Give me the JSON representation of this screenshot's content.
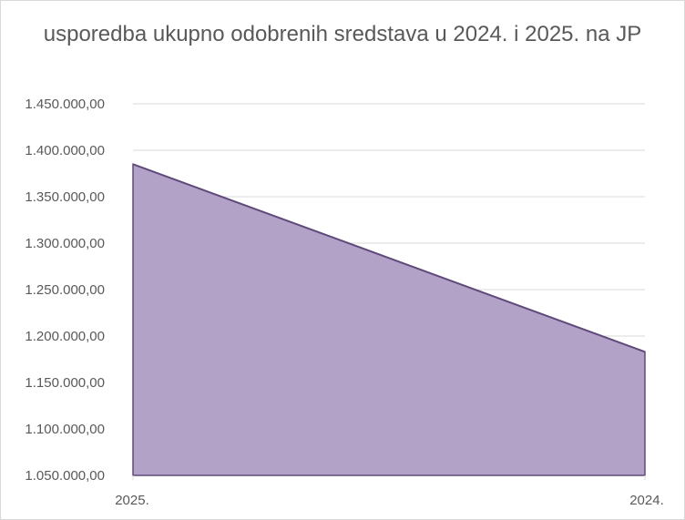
{
  "chart_data": {
    "type": "area",
    "title": "usporedba ukupno odobrenih sredstava u 2024. i 2025. na JP",
    "categories": [
      "2025.",
      "2024."
    ],
    "series": [
      {
        "values": [
          1385000,
          1183000
        ]
      }
    ],
    "xlabel": "",
    "ylabel": "",
    "ylim": [
      1050000,
      1450000
    ],
    "yticks": [
      {
        "value": 1050000,
        "label": "1.050.000,00"
      },
      {
        "value": 1100000,
        "label": "1.100.000,00"
      },
      {
        "value": 1150000,
        "label": "1.150.000,00"
      },
      {
        "value": 1200000,
        "label": "1.200.000,00"
      },
      {
        "value": 1250000,
        "label": "1.250.000,00"
      },
      {
        "value": 1300000,
        "label": "1.300.000,00"
      },
      {
        "value": 1350000,
        "label": "1.350.000,00"
      },
      {
        "value": 1400000,
        "label": "1.400.000,00"
      },
      {
        "value": 1450000,
        "label": "1.450.000,00"
      }
    ],
    "grid": true,
    "legend": "none",
    "colors": {
      "fill": "#b3a2c7",
      "line": "#604a7b",
      "grid": "#d9d9d9",
      "text": "#595959"
    }
  }
}
